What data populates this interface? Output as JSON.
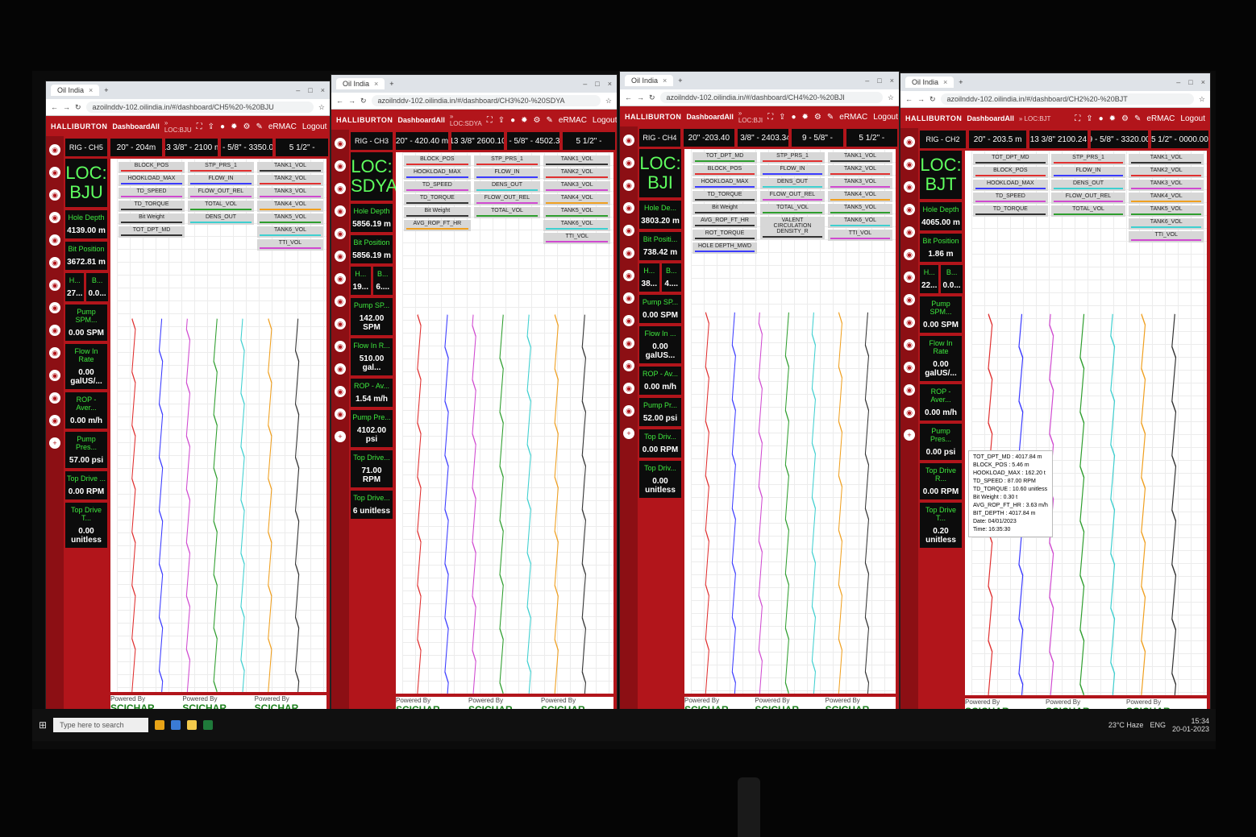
{
  "browser": {
    "tab_title": "Oil India",
    "url_host": "azoilnddv-102.oilindia.in"
  },
  "app": {
    "brand": "HALLIBURTON",
    "dashboard": "DashboardAll",
    "user": "eRMAC",
    "logout": "Logout",
    "powered_by": "Powered By",
    "vendor": "SCICHAR"
  },
  "screens": [
    {
      "url_path": "/#/dashboard/CH5%20-%20BJU",
      "crumb": "» LOC:BJU",
      "rig": "RIG - CH5",
      "casings": [
        "20\" - 204m",
        "13 3/8\" - 2100 m",
        "9 - 5/8\" - 3350.00",
        "5 1/2\" -"
      ],
      "loc": "LOC: BJU",
      "metrics": [
        {
          "label": "Hole Depth",
          "value": "4139.00 m"
        },
        {
          "label": "Bit Position",
          "value": "3672.81 m"
        },
        {
          "label": "H...",
          "value": "27...",
          "label2": "B...",
          "value2": "0.0..."
        },
        {
          "label": "Pump SPM...",
          "value": "0.00 SPM"
        },
        {
          "label": "Flow In Rate",
          "value": "0.00 galUS/..."
        },
        {
          "label": "ROP - Aver...",
          "value": "0.00 m/h"
        },
        {
          "label": "Pump Pres...",
          "value": "57.00 psi"
        },
        {
          "label": "Top Drive ...",
          "value": "0.00 RPM"
        },
        {
          "label": "Top Drive T...",
          "value": "0.00 unitless"
        }
      ],
      "tracks": [
        [
          {
            "name": "BLOCK_POS",
            "color": "#e03030"
          },
          {
            "name": "HOOKLOAD_MAX",
            "color": "#3b3bff"
          },
          {
            "name": "TD_SPEED",
            "color": "#d04ad0"
          },
          {
            "name": "TD_TORQUE",
            "color": "#333333"
          },
          {
            "name": "Bit Weight",
            "color": "#333333"
          },
          {
            "name": "TOT_DPT_MD",
            "color": "#333333"
          }
        ],
        [
          {
            "name": "STP_PRS_1",
            "color": "#e03030"
          },
          {
            "name": "FLOW_IN",
            "color": "#3b3bff"
          },
          {
            "name": "FLOW_OUT_REL",
            "color": "#d04ad0"
          },
          {
            "name": "TOTAL_VOL",
            "color": "#2e9e2e"
          },
          {
            "name": "DENS_OUT",
            "color": "#3fd0d0"
          }
        ],
        [
          {
            "name": "TANK1_VOL",
            "color": "#333333"
          },
          {
            "name": "TANK2_VOL",
            "color": "#e03030"
          },
          {
            "name": "TANK3_VOL",
            "color": "#d04ad0"
          },
          {
            "name": "TANK4_VOL",
            "color": "#f0a020"
          },
          {
            "name": "TANK5_VOL",
            "color": "#2e9e2e"
          },
          {
            "name": "TANK6_VOL",
            "color": "#3fd0d0"
          },
          {
            "name": "TTI_VOL",
            "color": "#d04ad0"
          }
        ]
      ]
    },
    {
      "url_path": "/#/dashboard/CH3%20-%20SDYA",
      "crumb": "» LOC:SDYA",
      "rig": "RIG - CH3",
      "casings": [
        "20\" - 420.40 m",
        "13 3/8\" 2600.10",
        "9 - 5/8\" - 4502.34",
        "5 1/2\" -"
      ],
      "loc": "LOC: SDYA",
      "metrics": [
        {
          "label": "Hole Depth",
          "value": "5856.19 m"
        },
        {
          "label": "Bit Position",
          "value": "5856.19 m"
        },
        {
          "label": "H...",
          "value": "19...",
          "label2": "B...",
          "value2": "6...."
        },
        {
          "label": "Pump SP...",
          "value": "142.00 SPM"
        },
        {
          "label": "Flow In R...",
          "value": "510.00 gal..."
        },
        {
          "label": "ROP - Av...",
          "value": "1.54 m/h"
        },
        {
          "label": "Pump Pre...",
          "value": "4102.00 psi"
        },
        {
          "label": "Top Drive...",
          "value": "71.00 RPM"
        },
        {
          "label": "Top Drive...",
          "value": "6 unitless"
        }
      ],
      "tracks": [
        [
          {
            "name": "BLOCK_POS",
            "color": "#e03030"
          },
          {
            "name": "HOOKLOAD_MAX",
            "color": "#3b3bff"
          },
          {
            "name": "TD_SPEED",
            "color": "#d04ad0"
          },
          {
            "name": "TD_TORQUE",
            "color": "#333333"
          },
          {
            "name": "Bit Weight",
            "color": "#333333"
          },
          {
            "name": "AVG_ROP_FT_HR",
            "color": "#f0a020"
          }
        ],
        [
          {
            "name": "STP_PRS_1",
            "color": "#e03030"
          },
          {
            "name": "FLOW_IN",
            "color": "#3b3bff"
          },
          {
            "name": "DENS_OUT",
            "color": "#3fd0d0"
          },
          {
            "name": "FLOW_OUT_REL",
            "color": "#d04ad0"
          },
          {
            "name": "TOTAL_VOL",
            "color": "#2e9e2e"
          }
        ],
        [
          {
            "name": "TANK1_VOL",
            "color": "#333333"
          },
          {
            "name": "TANK2_VOL",
            "color": "#e03030"
          },
          {
            "name": "TANK3_VOL",
            "color": "#d04ad0"
          },
          {
            "name": "TANK4_VOL",
            "color": "#f0a020"
          },
          {
            "name": "TANK5_VOL",
            "color": "#2e9e2e"
          },
          {
            "name": "TANK6_VOL",
            "color": "#3fd0d0"
          },
          {
            "name": "TTI_VOL",
            "color": "#d04ad0"
          }
        ]
      ]
    },
    {
      "url_path": "/#/dashboard/CH4%20-%20BJI",
      "crumb": "» LOC:BJI",
      "rig": "RIG - CH4",
      "casings": [
        "20\" -203.40",
        "13 3/8\" - 2403.34m",
        "9 - 5/8\" -",
        "5 1/2\" -"
      ],
      "loc": "LOC: BJI",
      "metrics": [
        {
          "label": "Hole De...",
          "value": "3803.20 m"
        },
        {
          "label": "Bit Positi...",
          "value": "738.42 m"
        },
        {
          "label": "H...",
          "value": "38...",
          "label2": "B...",
          "value2": "4...."
        },
        {
          "label": "Pump SP...",
          "value": "0.00 SPM"
        },
        {
          "label": "Flow In ...",
          "value": "0.00 galUS..."
        },
        {
          "label": "ROP - Av...",
          "value": "0.00 m/h"
        },
        {
          "label": "Pump Pr...",
          "value": "52.00 psi"
        },
        {
          "label": "Top Driv...",
          "value": "0.00 RPM"
        },
        {
          "label": "Top Driv...",
          "value": "0.00 unitless"
        }
      ],
      "tracks": [
        [
          {
            "name": "TOT_DPT_MD",
            "color": "#2e9e2e"
          },
          {
            "name": "BLOCK_POS",
            "color": "#e03030"
          },
          {
            "name": "HOOKLOAD_MAX",
            "color": "#3b3bff"
          },
          {
            "name": "TD_TORQUE",
            "color": "#333333"
          },
          {
            "name": "Bit Weight",
            "color": "#333333"
          },
          {
            "name": "AVG_ROP_FT_HR",
            "color": "#333333"
          },
          {
            "name": "ROT_TORQUE",
            "color": "#333333"
          },
          {
            "name": "HOLE DEPTH_MWD",
            "color": "#3b3bff"
          }
        ],
        [
          {
            "name": "STP_PRS_1",
            "color": "#e03030"
          },
          {
            "name": "FLOW_IN",
            "color": "#3b3bff"
          },
          {
            "name": "DENS_OUT",
            "color": "#3fd0d0"
          },
          {
            "name": "FLOW_OUT_REL",
            "color": "#d04ad0"
          },
          {
            "name": "TOTAL_VOL",
            "color": "#2e9e2e"
          },
          {
            "name": "VALENT CIRCULATION DENSITY_R",
            "color": "#333333"
          }
        ],
        [
          {
            "name": "TANK1_VOL",
            "color": "#333333"
          },
          {
            "name": "TANK2_VOL",
            "color": "#e03030"
          },
          {
            "name": "TANK3_VOL",
            "color": "#d04ad0"
          },
          {
            "name": "TANK4_VOL",
            "color": "#f0a020"
          },
          {
            "name": "TANK5_VOL",
            "color": "#2e9e2e"
          },
          {
            "name": "TANK6_VOL",
            "color": "#3fd0d0"
          },
          {
            "name": "TTI_VOL",
            "color": "#d04ad0"
          }
        ]
      ]
    },
    {
      "url_path": "/#/dashboard/CH2%20-%20BJT",
      "crumb": "» LOC:BJT",
      "rig": "RIG - CH2",
      "casings": [
        "20\" - 203.5 m",
        "13 3/8\" 2100.24",
        "9 - 5/8\" - 3320.00",
        "5 1/2\" - 0000.00"
      ],
      "loc": "LOC: BJT",
      "metrics": [
        {
          "label": "Hole Depth",
          "value": "4065.00 m"
        },
        {
          "label": "Bit Position",
          "value": "1.86 m"
        },
        {
          "label": "H...",
          "value": "22...",
          "label2": "B...",
          "value2": "0.0..."
        },
        {
          "label": "Pump SPM...",
          "value": "0.00 SPM"
        },
        {
          "label": "Flow In Rate",
          "value": "0.00 galUS/..."
        },
        {
          "label": "ROP - Aver...",
          "value": "0.00 m/h"
        },
        {
          "label": "Pump Pres...",
          "value": "0.00 psi"
        },
        {
          "label": "Top Drive R...",
          "value": "0.00 RPM"
        },
        {
          "label": "Top Drive T...",
          "value": "0.20 unitless"
        }
      ],
      "tracks": [
        [
          {
            "name": "TOT_DPT_MD",
            "color": "#333333"
          },
          {
            "name": "BLOCK_POS",
            "color": "#e03030"
          },
          {
            "name": "HOOKLOAD_MAX",
            "color": "#3b3bff"
          },
          {
            "name": "TD_SPEED",
            "color": "#d04ad0"
          },
          {
            "name": "TD_TORQUE",
            "color": "#333333"
          }
        ],
        [
          {
            "name": "STP_PRS_1",
            "color": "#e03030"
          },
          {
            "name": "FLOW_IN",
            "color": "#3b3bff"
          },
          {
            "name": "DENS_OUT",
            "color": "#3fd0d0"
          },
          {
            "name": "FLOW_OUT_REL",
            "color": "#d04ad0"
          },
          {
            "name": "TOTAL_VOL",
            "color": "#2e9e2e"
          }
        ],
        [
          {
            "name": "TANK1_VOL",
            "color": "#333333"
          },
          {
            "name": "TANK2_VOL",
            "color": "#e03030"
          },
          {
            "name": "TANK3_VOL",
            "color": "#d04ad0"
          },
          {
            "name": "TANK4_VOL",
            "color": "#f0a020"
          },
          {
            "name": "TANK5_VOL",
            "color": "#2e9e2e"
          },
          {
            "name": "TANK6_VOL",
            "color": "#3fd0d0"
          },
          {
            "name": "TTI_VOL",
            "color": "#d04ad0"
          }
        ]
      ],
      "tooltip": [
        "TOT_DPT_MD : 4017.84 m",
        "BLOCK_POS : 5.46 m",
        "HOOKLOAD_MAX : 162.20 t",
        "TD_SPEED : 87.00 RPM",
        "TD_TORQUE : 10.60 unitless",
        "Bit Weight : 0.30 t",
        "AVG_ROP_FT_HR : 3.63 m/h",
        "BIT_DEPTH : 4017.84 m",
        "Date: 04/01/2023",
        "Time: 16:35:30"
      ]
    }
  ],
  "taskbar": {
    "search_placeholder": "Type here to search",
    "weather": "23°C Haze",
    "lang": "ENG",
    "time": "15:34",
    "date": "20-01-2023"
  },
  "colors": {
    "brand_red": "#b2151b",
    "metric_green": "#3ee93e",
    "loc_green": "#5fff5f"
  }
}
